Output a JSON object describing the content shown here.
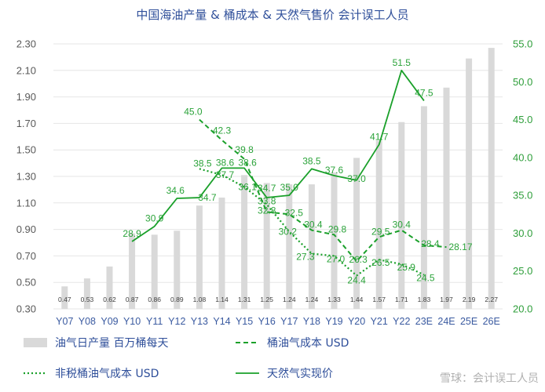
{
  "title": "中国海油产量 & 桶成本 & 天然气售价 会计误工人员",
  "watermark": "雪球：会计误工人员",
  "colors": {
    "bar": "#d9d9d9",
    "line": "#1aa02a",
    "title": "#2f4f9a",
    "leftTick": "#595959",
    "rightTick": "#2e9e3a"
  },
  "chart_data": {
    "type": "bar+line",
    "categories": [
      "Y07",
      "Y08",
      "Y09",
      "Y10",
      "Y11",
      "Y12",
      "Y13",
      "Y14",
      "Y15",
      "Y16",
      "Y17",
      "Y18",
      "Y19",
      "Y20",
      "Y21",
      "Y22",
      "23E",
      "24E",
      "25E",
      "26E"
    ],
    "y_left": {
      "min": 0.3,
      "max": 2.3,
      "ticks": [
        "0.30",
        "0.50",
        "0.70",
        "0.90",
        "1.10",
        "1.30",
        "1.50",
        "1.70",
        "1.90",
        "2.10",
        "2.30"
      ]
    },
    "y_right": {
      "min": 20,
      "max": 55,
      "ticks": [
        "20.0",
        "25.0",
        "30.0",
        "35.0",
        "40.0",
        "45.0",
        "50.0",
        "55.0"
      ]
    },
    "series": [
      {
        "name": "油气日产量 百万桶每天",
        "kind": "bar",
        "axis": "left",
        "values": [
          0.47,
          0.53,
          0.62,
          0.87,
          0.86,
          0.89,
          1.08,
          1.14,
          1.31,
          1.25,
          1.24,
          1.24,
          1.33,
          1.44,
          1.57,
          1.71,
          1.83,
          1.97,
          2.19,
          2.27
        ],
        "labels": [
          "0.47",
          "0.53",
          "0.62",
          "0.87",
          "0.86",
          "0.89",
          "1.08",
          "1.14",
          "1.31",
          "1.25",
          "1.24",
          "1.24",
          "1.33",
          "1.44",
          "1.57",
          "1.71",
          "1.83",
          "1.97",
          "2.19",
          "2.27"
        ]
      },
      {
        "name": "桶油气成本 USD",
        "kind": "dashed",
        "axis": "right",
        "values": [
          null,
          null,
          null,
          null,
          null,
          null,
          45.0,
          42.3,
          39.8,
          32.8,
          32.5,
          30.4,
          29.8,
          26.3,
          29.5,
          30.4,
          28.4,
          28.17,
          null,
          null
        ],
        "labels": [
          null,
          null,
          null,
          null,
          null,
          null,
          "45.0",
          "42.3",
          "39.8",
          "32.8",
          "32.5",
          "30.4",
          "29.8",
          "26.3",
          "29.5",
          "30.4",
          "28.4",
          "28.17",
          null,
          null
        ]
      },
      {
        "name": "非税桶油气成本 USD",
        "kind": "dotted",
        "axis": "right",
        "values": [
          null,
          null,
          null,
          null,
          null,
          null,
          38.5,
          37.7,
          36.1,
          33.8,
          30.2,
          27.3,
          27.0,
          24.4,
          26.5,
          25.9,
          24.5,
          null,
          null,
          null
        ],
        "labels": [
          null,
          null,
          null,
          null,
          null,
          null,
          "38.5",
          "37.7",
          "36.1",
          "33.8",
          "30.2",
          "27.3",
          "27.0",
          "24.4",
          "26.5",
          "25.9",
          "24.5",
          null,
          null,
          null
        ]
      },
      {
        "name": "天然气实现价",
        "kind": "solid",
        "axis": "right",
        "values": [
          null,
          null,
          null,
          28.9,
          30.9,
          34.6,
          34.7,
          38.6,
          38.6,
          34.7,
          35.0,
          38.5,
          37.6,
          37.0,
          41.7,
          51.5,
          47.5,
          null,
          null,
          null
        ],
        "labels": [
          null,
          null,
          null,
          "28.9",
          "30.9",
          "34.6",
          "34.7",
          "38.6",
          "38.6",
          "34.7",
          "35.0",
          "38.5",
          "37.6",
          "37.0",
          "41.7",
          "51.5",
          "47.5",
          null,
          null,
          null
        ]
      }
    ]
  }
}
